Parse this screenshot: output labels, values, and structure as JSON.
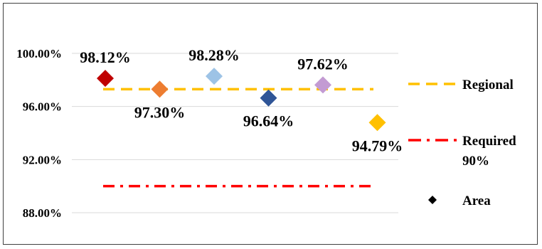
{
  "chart_data": {
    "type": "scatter",
    "title": "",
    "xlabel": "",
    "ylabel": "",
    "ylim": [
      0.865,
      1.015
    ],
    "y_ticks": [
      {
        "value": 0.88,
        "label": "88.00%"
      },
      {
        "value": 0.92,
        "label": "92.00%"
      },
      {
        "value": 0.96,
        "label": "96.00%"
      },
      {
        "value": 1.0,
        "label": "100.00%"
      }
    ],
    "grid": "horizontal",
    "legend_position": "right",
    "points": [
      {
        "x": 1,
        "value": 0.9812,
        "label": "98.12%",
        "color": "#C00000",
        "label_pos": "above"
      },
      {
        "x": 2,
        "value": 0.973,
        "label": "97.30%",
        "color": "#ED7D31",
        "label_pos": "below"
      },
      {
        "x": 3,
        "value": 0.9828,
        "label": "98.28%",
        "color": "#9DC3E6",
        "label_pos": "above"
      },
      {
        "x": 4,
        "value": 0.9664,
        "label": "96.64%",
        "color": "#2F5597",
        "label_pos": "below"
      },
      {
        "x": 5,
        "value": 0.9762,
        "label": "97.62%",
        "color": "#C39BD3",
        "label_pos": "above"
      },
      {
        "x": 6,
        "value": 0.9479,
        "label": "94.79%",
        "color": "#FFC000",
        "label_pos": "below"
      }
    ],
    "reference_lines": [
      {
        "name": "Regional",
        "value": 0.973,
        "color": "#FFC000",
        "style": "dash"
      },
      {
        "name": "Required 90%",
        "value": 0.9,
        "color": "#FF0000",
        "style": "dash-dot"
      }
    ],
    "legend": [
      {
        "label": "Regional",
        "marker": "line-dash",
        "color": "#FFC000"
      },
      {
        "label_lines": [
          "Required",
          "90%"
        ],
        "marker": "line-dash-dot",
        "color": "#FF0000"
      },
      {
        "label": "Area",
        "marker": "diamond",
        "color": "#000000"
      }
    ],
    "gridline_color": "#D9D9D9"
  }
}
